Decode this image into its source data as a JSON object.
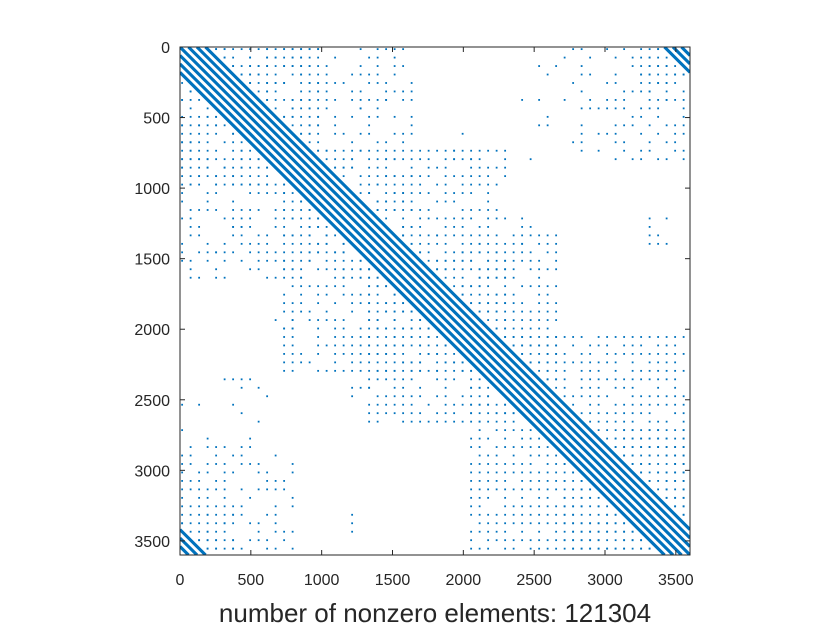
{
  "chart_data": {
    "type": "scatter",
    "plot_kind": "sparsity-pattern",
    "title": "",
    "xlabel": "number of nonzero elements: 121304",
    "ylabel": "",
    "xlim": [
      0,
      3600
    ],
    "ylim": [
      0,
      3600
    ],
    "y_direction": "reversed",
    "grid": false,
    "marker_color": "#0072BD",
    "x_ticks": [
      0,
      500,
      1000,
      1500,
      2000,
      2500,
      3000,
      3500
    ],
    "y_ticks": [
      0,
      500,
      1000,
      1500,
      2000,
      2500,
      3000,
      3500
    ],
    "nonzero_count": 121304,
    "matrix_size": 3600,
    "band": {
      "diagonal_offsets": [
        0,
        60,
        -60,
        120,
        -120,
        180,
        -180
      ],
      "corner_wrap_offsets": [
        3420,
        -3420,
        3480,
        -3480,
        3540,
        -3540
      ],
      "diagonal_width": 22
    },
    "grid_blocks": {
      "spacing": 60,
      "clusters": [
        {
          "rows": [
            0,
            1000
          ],
          "cols": [
            0,
            1000
          ],
          "density": 0.85
        },
        {
          "rows": [
            0,
            1680
          ],
          "cols": [
            0,
            1680
          ],
          "density": 0.55
        },
        {
          "rows": [
            700,
            2300
          ],
          "cols": [
            700,
            2300
          ],
          "density": 0.7
        },
        {
          "rows": [
            1300,
            2700
          ],
          "cols": [
            1300,
            2700
          ],
          "density": 0.8
        },
        {
          "rows": [
            2000,
            3600
          ],
          "cols": [
            2000,
            3600
          ],
          "density": 0.85
        },
        {
          "rows": [
            2700,
            3600
          ],
          "cols": [
            2700,
            3600
          ],
          "density": 0.9
        },
        {
          "rows": [
            0,
            400
          ],
          "cols": [
            3200,
            3600
          ],
          "density": 0.75
        },
        {
          "rows": [
            3200,
            3600
          ],
          "cols": [
            0,
            400
          ],
          "density": 0.75
        },
        {
          "rows": [
            2800,
            3600
          ],
          "cols": [
            0,
            800
          ],
          "density": 0.45
        },
        {
          "rows": [
            0,
            800
          ],
          "cols": [
            2800,
            3600
          ],
          "density": 0.45
        },
        {
          "rows": [
            2300,
            2800
          ],
          "cols": [
            0,
            900
          ],
          "density": 0.18
        },
        {
          "rows": [
            0,
            900
          ],
          "cols": [
            2300,
            2800
          ],
          "density": 0.18
        },
        {
          "rows": [
            200,
            450
          ],
          "cols": [
            1200,
            1500
          ],
          "density": 0.5
        },
        {
          "rows": [
            1200,
            1500
          ],
          "cols": [
            200,
            450
          ],
          "density": 0.5
        },
        {
          "rows": [
            1150,
            1450
          ],
          "cols": [
            2300,
            2500
          ],
          "density": 0.4
        },
        {
          "rows": [
            2300,
            2500
          ],
          "cols": [
            1150,
            1450
          ],
          "density": 0.4
        },
        {
          "rows": [
            1900,
            2100
          ],
          "cols": [
            600,
            800
          ],
          "density": 0.4
        },
        {
          "rows": [
            600,
            800
          ],
          "cols": [
            1900,
            2100
          ],
          "density": 0.4
        },
        {
          "rows": [
            1150,
            1400
          ],
          "cols": [
            3300,
            3500
          ],
          "density": 0.3
        },
        {
          "rows": [
            3300,
            3500
          ],
          "cols": [
            1150,
            1400
          ],
          "density": 0.3
        }
      ]
    }
  }
}
